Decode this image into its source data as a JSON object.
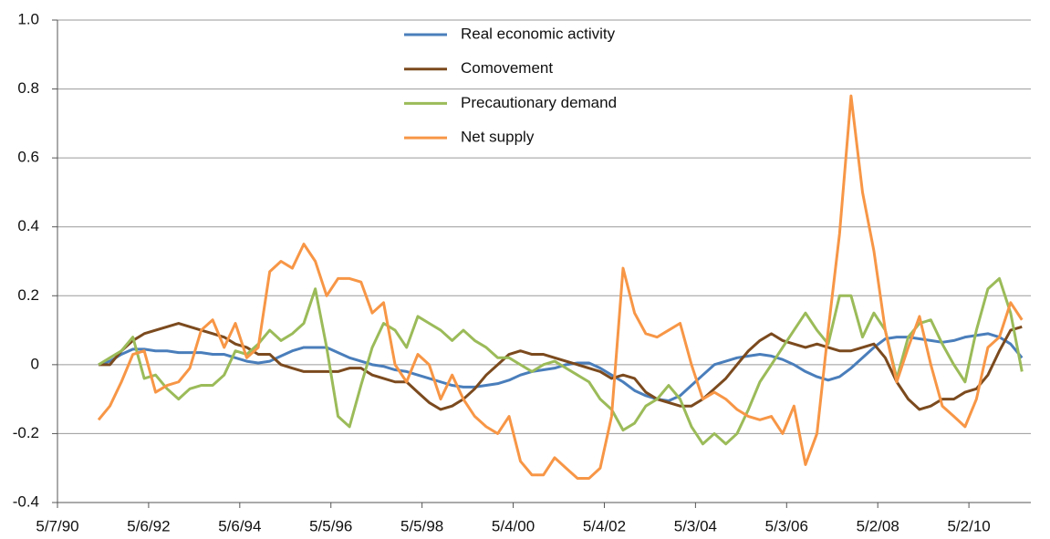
{
  "chart_data": {
    "type": "line",
    "x": [
      "1991-04-01",
      "1991-07-01",
      "1991-10-01",
      "1992-01-01",
      "1992-04-01",
      "1992-07-01",
      "1992-10-01",
      "1993-01-01",
      "1993-04-01",
      "1993-07-01",
      "1993-10-01",
      "1994-01-01",
      "1994-04-01",
      "1994-07-01",
      "1994-10-01",
      "1995-01-01",
      "1995-04-01",
      "1995-07-01",
      "1995-10-01",
      "1996-01-01",
      "1996-04-01",
      "1996-07-01",
      "1996-10-01",
      "1997-01-01",
      "1997-04-01",
      "1997-07-01",
      "1997-10-01",
      "1998-01-01",
      "1998-04-01",
      "1998-07-01",
      "1998-10-01",
      "1999-01-01",
      "1999-04-01",
      "1999-07-01",
      "1999-10-01",
      "2000-01-01",
      "2000-04-01",
      "2000-07-01",
      "2000-10-01",
      "2001-01-01",
      "2001-04-01",
      "2001-07-01",
      "2001-10-01",
      "2002-01-01",
      "2002-04-01",
      "2002-07-01",
      "2002-10-01",
      "2003-01-01",
      "2003-04-01",
      "2003-07-01",
      "2003-10-01",
      "2004-01-01",
      "2004-04-01",
      "2004-07-01",
      "2004-10-01",
      "2005-01-01",
      "2005-04-01",
      "2005-07-01",
      "2005-10-01",
      "2006-01-01",
      "2006-04-01",
      "2006-07-01",
      "2006-10-01",
      "2007-01-01",
      "2007-04-01",
      "2007-07-01",
      "2007-10-01",
      "2008-01-01",
      "2008-04-01",
      "2008-07-01",
      "2008-10-01",
      "2009-01-01",
      "2009-04-01",
      "2009-07-01",
      "2009-10-01",
      "2010-01-01",
      "2010-04-01",
      "2010-07-01",
      "2010-10-01",
      "2011-01-01",
      "2011-04-01",
      "2011-07-01"
    ],
    "series": [
      {
        "name": "Real economic activity",
        "color": "#4a7ebb",
        "values": [
          0.0,
          0.01,
          0.03,
          0.045,
          0.045,
          0.04,
          0.04,
          0.035,
          0.035,
          0.035,
          0.03,
          0.03,
          0.02,
          0.01,
          0.005,
          0.01,
          0.025,
          0.04,
          0.05,
          0.05,
          0.05,
          0.035,
          0.02,
          0.01,
          0.0,
          -0.005,
          -0.015,
          -0.02,
          -0.03,
          -0.04,
          -0.05,
          -0.06,
          -0.065,
          -0.065,
          -0.06,
          -0.055,
          -0.045,
          -0.03,
          -0.02,
          -0.015,
          -0.01,
          0.0,
          0.005,
          0.005,
          -0.01,
          -0.03,
          -0.05,
          -0.075,
          -0.09,
          -0.1,
          -0.105,
          -0.09,
          -0.06,
          -0.03,
          0.0,
          0.01,
          0.02,
          0.025,
          0.03,
          0.025,
          0.015,
          0.0,
          -0.02,
          -0.035,
          -0.045,
          -0.035,
          -0.01,
          0.02,
          0.05,
          0.075,
          0.08,
          0.08,
          0.075,
          0.07,
          0.065,
          0.07,
          0.08,
          0.085,
          0.09,
          0.08,
          0.06,
          0.02
        ]
      },
      {
        "name": "Comovement",
        "color": "#7b4a1e",
        "values": [
          0.0,
          0.0,
          0.04,
          0.07,
          0.09,
          0.1,
          0.11,
          0.12,
          0.11,
          0.1,
          0.09,
          0.08,
          0.06,
          0.05,
          0.03,
          0.03,
          0.0,
          -0.01,
          -0.02,
          -0.02,
          -0.02,
          -0.02,
          -0.01,
          -0.01,
          -0.03,
          -0.04,
          -0.05,
          -0.05,
          -0.08,
          -0.11,
          -0.13,
          -0.12,
          -0.1,
          -0.07,
          -0.03,
          0.0,
          0.03,
          0.04,
          0.03,
          0.03,
          0.02,
          0.01,
          0.0,
          -0.01,
          -0.02,
          -0.04,
          -0.03,
          -0.04,
          -0.08,
          -0.1,
          -0.11,
          -0.12,
          -0.12,
          -0.1,
          -0.07,
          -0.04,
          0.0,
          0.04,
          0.07,
          0.09,
          0.07,
          0.06,
          0.05,
          0.06,
          0.05,
          0.04,
          0.04,
          0.05,
          0.06,
          0.02,
          -0.05,
          -0.1,
          -0.13,
          -0.12,
          -0.1,
          -0.1,
          -0.08,
          -0.07,
          -0.03,
          0.04,
          0.1,
          0.11
        ]
      },
      {
        "name": "Precautionary demand",
        "color": "#9bbb59",
        "values": [
          0.0,
          0.02,
          0.04,
          0.08,
          -0.04,
          -0.03,
          -0.07,
          -0.1,
          -0.07,
          -0.06,
          -0.06,
          -0.03,
          0.04,
          0.03,
          0.06,
          0.1,
          0.07,
          0.09,
          0.12,
          0.22,
          0.05,
          -0.15,
          -0.18,
          -0.06,
          0.05,
          0.12,
          0.1,
          0.05,
          0.14,
          0.12,
          0.1,
          0.07,
          0.1,
          0.07,
          0.05,
          0.02,
          0.02,
          0.0,
          -0.02,
          0.0,
          0.01,
          -0.01,
          -0.03,
          -0.05,
          -0.1,
          -0.13,
          -0.19,
          -0.17,
          -0.12,
          -0.1,
          -0.06,
          -0.1,
          -0.18,
          -0.23,
          -0.2,
          -0.23,
          -0.2,
          -0.13,
          -0.05,
          0.0,
          0.05,
          0.1,
          0.15,
          0.1,
          0.06,
          0.2,
          0.2,
          0.08,
          0.15,
          0.1,
          -0.04,
          0.08,
          0.12,
          0.13,
          0.06,
          0.0,
          -0.05,
          0.1,
          0.22,
          0.25,
          0.15,
          -0.02
        ]
      },
      {
        "name": "Net supply",
        "color": "#f79646",
        "values": [
          -0.16,
          -0.12,
          -0.05,
          0.03,
          0.04,
          -0.08,
          -0.06,
          -0.05,
          -0.01,
          0.1,
          0.13,
          0.05,
          0.12,
          0.02,
          0.05,
          0.27,
          0.3,
          0.28,
          0.35,
          0.3,
          0.2,
          0.25,
          0.25,
          0.24,
          0.15,
          0.18,
          0.0,
          -0.05,
          0.03,
          0.0,
          -0.1,
          -0.03,
          -0.1,
          -0.15,
          -0.18,
          -0.2,
          -0.15,
          -0.28,
          -0.32,
          -0.32,
          -0.27,
          -0.3,
          -0.33,
          -0.33,
          -0.3,
          -0.15,
          0.28,
          0.15,
          0.09,
          0.08,
          0.1,
          0.12,
          0.0,
          -0.1,
          -0.08,
          -0.1,
          -0.13,
          -0.15,
          -0.16,
          -0.15,
          -0.2,
          -0.12,
          -0.29,
          -0.2,
          0.1,
          0.38,
          0.78,
          0.5,
          0.33,
          0.1,
          -0.05,
          0.05,
          0.14,
          0.0,
          -0.12,
          -0.15,
          -0.18,
          -0.1,
          0.05,
          0.08,
          0.18,
          0.13
        ]
      }
    ],
    "xlim": [
      "1990-05-07",
      "2011-09-10"
    ],
    "xticks": [
      {
        "value": "1990-05-07",
        "label": "5/7/90"
      },
      {
        "value": "1992-05-06",
        "label": "5/6/92"
      },
      {
        "value": "1994-05-06",
        "label": "5/6/94"
      },
      {
        "value": "1996-05-05",
        "label": "5/5/96"
      },
      {
        "value": "1998-05-05",
        "label": "5/5/98"
      },
      {
        "value": "2000-05-04",
        "label": "5/4/00"
      },
      {
        "value": "2002-05-04",
        "label": "5/4/02"
      },
      {
        "value": "2004-05-03",
        "label": "5/3/04"
      },
      {
        "value": "2006-05-03",
        "label": "5/3/06"
      },
      {
        "value": "2008-05-02",
        "label": "5/2/08"
      },
      {
        "value": "2010-05-02",
        "label": "5/2/10"
      }
    ],
    "ylim": [
      -0.4,
      1
    ],
    "yticks": [
      -0.4,
      -0.2,
      0,
      0.2,
      0.4,
      0.6,
      0.8,
      {
        "value": 1,
        "label": "1.0"
      }
    ],
    "grid": true,
    "legend": "top-center"
  }
}
